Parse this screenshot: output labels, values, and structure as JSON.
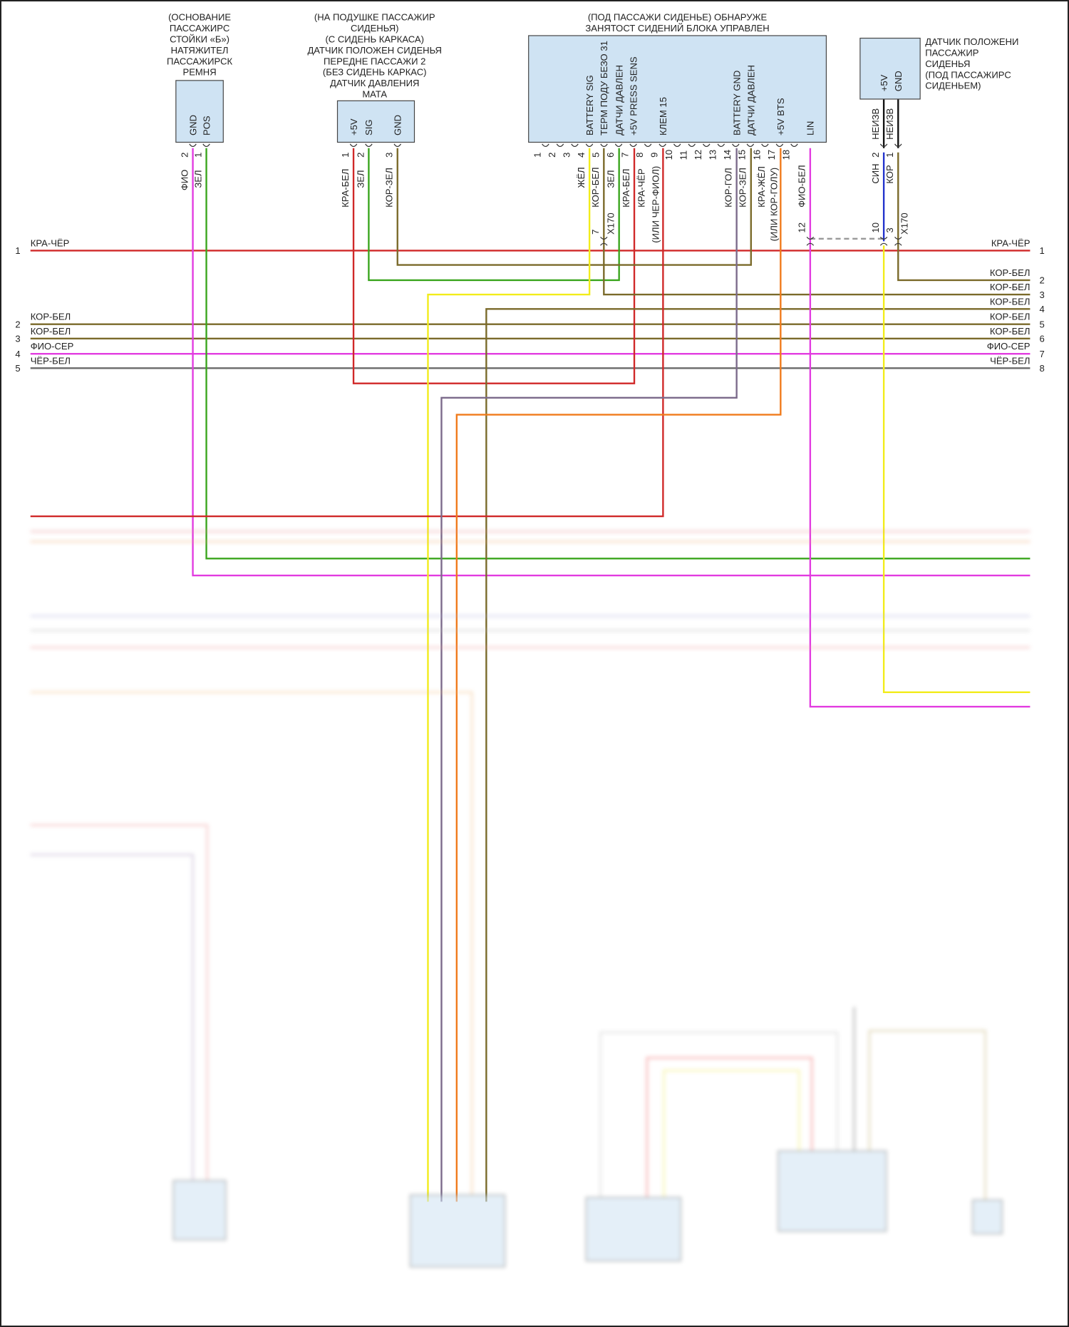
{
  "connectors": {
    "belt_tensioner": {
      "title_lines": [
        "(ОСНОВАНИЕ",
        "ПАССАЖИРС",
        "СТОЙКИ «Б»)",
        "НАТЯЖИТЕЛ",
        "ПАССАЖИРСК",
        "РЕМНЯ"
      ],
      "pins": [
        "GND",
        "POS"
      ],
      "pin_numbers": [
        "2",
        "1"
      ],
      "wires": [
        "ФИО",
        "ЗЕЛ"
      ]
    },
    "mat_sensor": {
      "title_lines": [
        "(НА ПОДУШКЕ ПАССАЖИР",
        "СИДЕНЬЯ)",
        "(С СИДЕНЬ КАРКАСА)",
        "ДАТЧИК ПОЛОЖЕН СИДЕНЬЯ",
        "ПЕРЕДНЕ ПАССАЖИ 2",
        "(БЕЗ СИДЕНЬ КАРКАС)",
        "ДАТЧИК ДАВЛЕНИЯ",
        "МАТА"
      ],
      "pins": [
        "+5V",
        "SIG",
        "GND"
      ],
      "pin_numbers": [
        "1",
        "2",
        "3"
      ],
      "wires": [
        "КРА-БЕЛ",
        "ЗЕЛ",
        "КОР-ЗЕЛ"
      ]
    },
    "control_unit": {
      "title_lines": [
        "(ПОД ПАССАЖИ СИДЕНЬЕ) ОБНАРУЖЕ",
        "ЗАНЯТОСТ СИДЕНИЙ БЛОКА УПРАВЛЕН"
      ],
      "pins": [
        "BATTERY SIG",
        "ТЕРМ ПОДУ БЕЗО 31",
        "ДАТЧИ ДАВЛЕН",
        "+5V PRESS SENS",
        "КЛЕМ 15",
        "BATTERY GND",
        "ДАТЧИ ДАВЛЕН",
        "+5V BTS",
        "LIN"
      ],
      "pin_numbers": [
        "1",
        "2",
        "3",
        "4",
        "5",
        "6",
        "7",
        "8",
        "9",
        "10",
        "11",
        "12",
        "13",
        "14",
        "15",
        "16",
        "17",
        "18"
      ],
      "wires": [
        "ЖЁЛ",
        "КОР-БЕЛ",
        "ЗЕЛ",
        "КРА-БЕЛ",
        "КРА-ЧЁР",
        "(ИЛИ ЧЕР-ФИОЛ)",
        "КОР-ГОЛ",
        "КОР-ЗЕЛ",
        "КРА-ЖЁЛ",
        "(ИЛИ КОР-ГОЛУ)",
        "ФИО-БЕЛ"
      ]
    },
    "seat_position_sensor": {
      "title_lines": [
        "ДАТЧИК ПОЛОЖЕНИ",
        "ПАССАЖИР",
        "СИДЕНЬЯ",
        "(ПОД ПАССАЖИРС",
        "СИДЕНЬЕМ)"
      ],
      "pins": [
        "+5V",
        "GND"
      ],
      "pin_numbers": [
        "2",
        "1"
      ],
      "wires_inner": [
        "НЕИЗВ",
        "НЕИЗВ"
      ],
      "wires": [
        "СИН",
        "КОР"
      ]
    }
  },
  "inline_connector": {
    "name": "X170",
    "pin_numbers": [
      "7",
      "12",
      "10",
      "3"
    ]
  },
  "harness_left": [
    {
      "num": "1",
      "color": "КРА-ЧЁР"
    },
    {
      "num": "2",
      "color": "КОР-БЕЛ"
    },
    {
      "num": "3",
      "color": "КОР-БЕЛ"
    },
    {
      "num": "4",
      "color": "ФИО-СЕР"
    },
    {
      "num": "5",
      "color": "ЧЁР-БЕЛ"
    }
  ],
  "harness_right": [
    {
      "num": "1",
      "color": "КРА-ЧЁР"
    },
    {
      "num": "2",
      "color": "КОР-БЕЛ"
    },
    {
      "num": "3",
      "color": "КОР-БЕЛ"
    },
    {
      "num": "4",
      "color": "КОР-БЕЛ"
    },
    {
      "num": "5",
      "color": "КОР-БЕЛ"
    },
    {
      "num": "6",
      "color": "КОР-БЕЛ"
    },
    {
      "num": "7",
      "color": "ФИО-СЕР"
    },
    {
      "num": "8",
      "color": "ЧЁР-БЕЛ"
    }
  ],
  "colors": {
    "red": "#d02828",
    "green": "#3aa51d",
    "magenta": "#e23be0",
    "olive": "#7a6a2a",
    "yellow": "#f2ec1a",
    "gray": "#6a6a6a",
    "orange": "#f07a1a",
    "blue": "#2233cc",
    "black": "#111111",
    "purple_gray": "#7b6a8a",
    "connector_fill": "#cfe3f3"
  }
}
